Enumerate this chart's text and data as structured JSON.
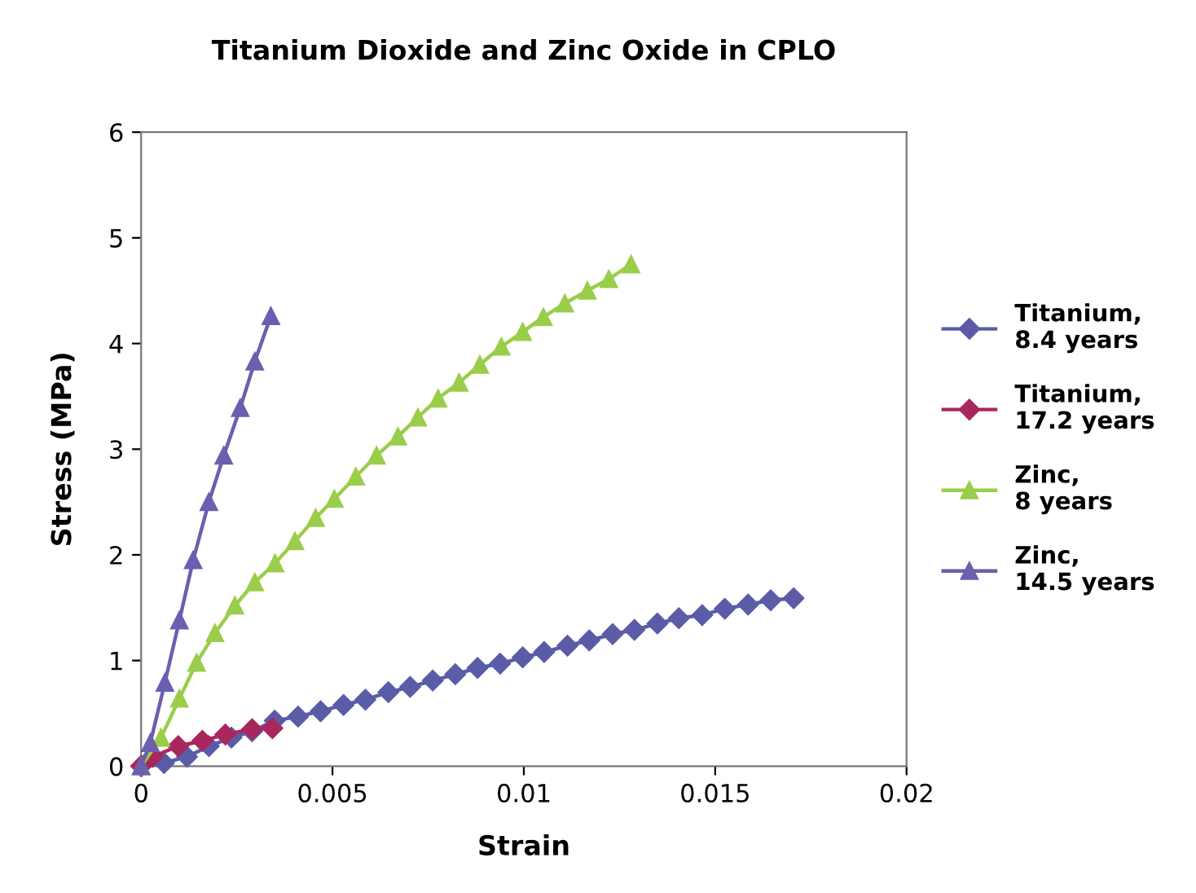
{
  "chart_data": {
    "type": "line",
    "title": "Titanium Dioxide and Zinc Oxide in CPLO",
    "xlabel": "Strain",
    "ylabel": "Stress (MPa)",
    "xlim": [
      0,
      0.02
    ],
    "xticks": [
      0,
      0.005,
      0.01,
      0.015,
      0.02
    ],
    "ylim": [
      0,
      6
    ],
    "yticks": [
      0,
      1,
      2,
      3,
      4,
      5,
      6
    ],
    "grid": false,
    "legend": "right",
    "line_style": "solid",
    "series": [
      {
        "name": "Titanium,\n8.4 years",
        "color": "#5b5ca8",
        "marker": "diamond",
        "x": [
          0,
          0.0006,
          0.0012,
          0.00177,
          0.00236,
          0.0029,
          0.00349,
          0.0041,
          0.00469,
          0.00529,
          0.00586,
          0.00646,
          0.00703,
          0.00762,
          0.00821,
          0.00879,
          0.00938,
          0.00997,
          0.01053,
          0.01114,
          0.01171,
          0.01232,
          0.01289,
          0.01349,
          0.01405,
          0.01466,
          0.01525,
          0.01586,
          0.01645,
          0.01705
        ],
        "values": [
          0,
          0.03,
          0.09,
          0.19,
          0.27,
          0.33,
          0.43,
          0.47,
          0.52,
          0.58,
          0.63,
          0.7,
          0.75,
          0.81,
          0.87,
          0.93,
          0.97,
          1.03,
          1.08,
          1.14,
          1.19,
          1.25,
          1.29,
          1.35,
          1.4,
          1.43,
          1.49,
          1.53,
          1.57,
          1.59
        ]
      },
      {
        "name": "Titanium,\n17.2 years",
        "color": "#a8285e",
        "marker": "diamond",
        "x": [
          0,
          0.0003,
          0.00097,
          0.0016,
          0.0022,
          0.0029,
          0.00343
        ],
        "values": [
          0,
          0.09,
          0.19,
          0.24,
          0.3,
          0.35,
          0.36
        ]
      },
      {
        "name": "Zinc,\n8 years",
        "color": "#9acd4a",
        "marker": "triangle",
        "x": [
          0,
          0.00052,
          0.001,
          0.00145,
          0.00193,
          0.00245,
          0.00297,
          0.0035,
          0.00402,
          0.00456,
          0.00505,
          0.00561,
          0.00615,
          0.00671,
          0.00723,
          0.00776,
          0.00831,
          0.00885,
          0.00941,
          0.00997,
          0.01051,
          0.01107,
          0.01166,
          0.01222,
          0.0128
        ],
        "values": [
          0,
          0.27,
          0.64,
          0.98,
          1.26,
          1.52,
          1.74,
          1.92,
          2.13,
          2.35,
          2.53,
          2.74,
          2.94,
          3.12,
          3.3,
          3.48,
          3.63,
          3.8,
          3.97,
          4.11,
          4.25,
          4.38,
          4.5,
          4.61,
          4.75
        ]
      },
      {
        "name": "Zinc,\n14.5 years",
        "color": "#6a5fb0",
        "marker": "triangle",
        "x": [
          0,
          0.00024,
          0.00062,
          0.001,
          0.00136,
          0.00177,
          0.00216,
          0.00259,
          0.00297,
          0.00339
        ],
        "values": [
          0,
          0.22,
          0.79,
          1.38,
          1.95,
          2.5,
          2.94,
          3.39,
          3.83,
          4.26
        ]
      }
    ]
  }
}
